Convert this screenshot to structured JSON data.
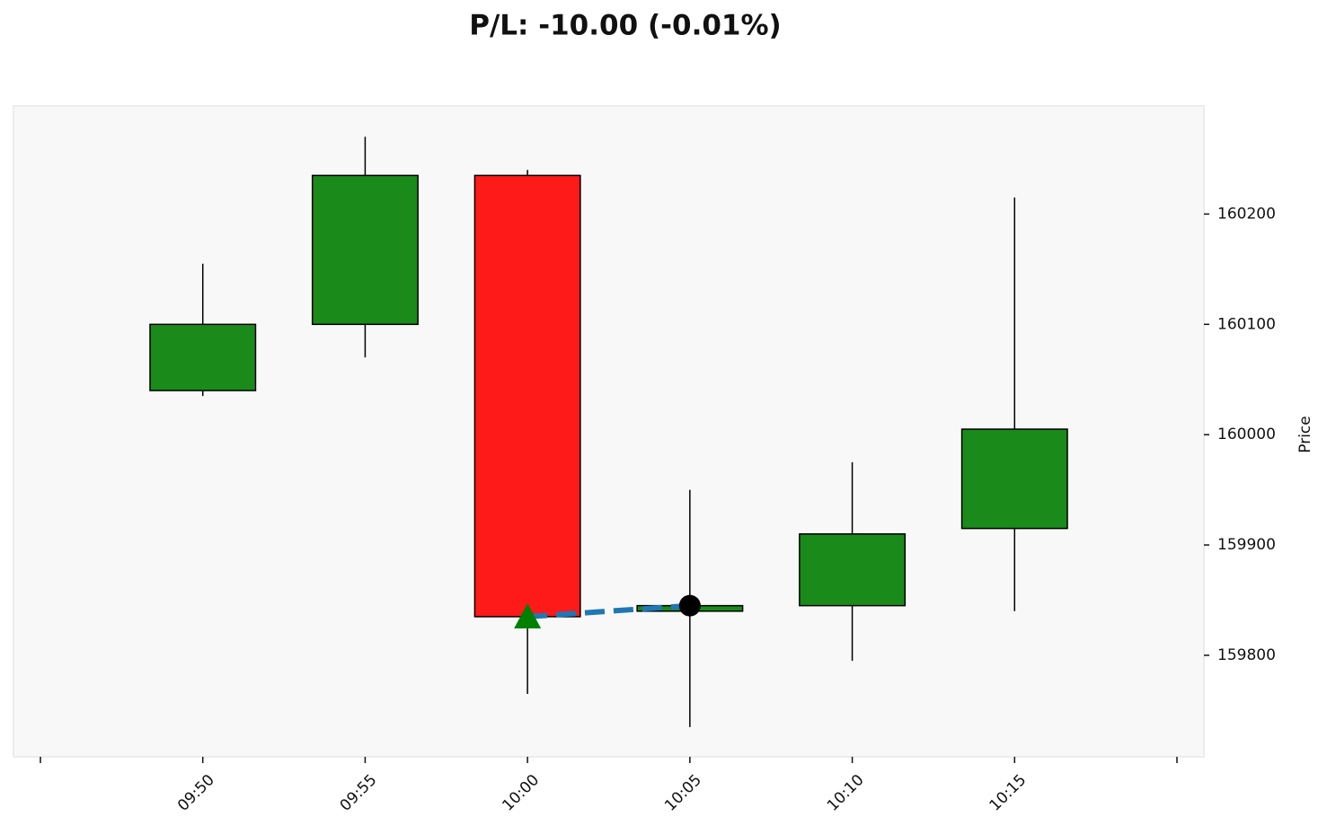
{
  "chart_data": {
    "type": "candlestick",
    "title": "P/L: -10.00 (-0.01%)",
    "y_label": "Price",
    "categories": [
      null,
      "09:50",
      "09:55",
      "10:00",
      "10:05",
      "10:10",
      "10:15",
      null
    ],
    "open": [
      null,
      160040,
      160100,
      160235,
      159840,
      159845,
      159915,
      null
    ],
    "high": [
      null,
      160155,
      160270,
      160240,
      159950,
      159975,
      160215,
      null
    ],
    "low": [
      null,
      160035,
      160070,
      159765,
      159735,
      159795,
      159840,
      null
    ],
    "close": [
      null,
      160100,
      160235,
      159835,
      159845,
      159910,
      160005,
      null
    ],
    "up_color": "#1a8a1a",
    "down_color": "#ff1a1a",
    "entry": {
      "x": "10:00",
      "price": 159835,
      "color": "#008000"
    },
    "exit": {
      "x": "10:05",
      "price": 159845,
      "color": "#000000"
    },
    "trade_line_color": "#1f77b4",
    "ylim": [
      159708,
      160298
    ],
    "yticks": [
      159800,
      159900,
      160000,
      160100,
      160200
    ]
  }
}
